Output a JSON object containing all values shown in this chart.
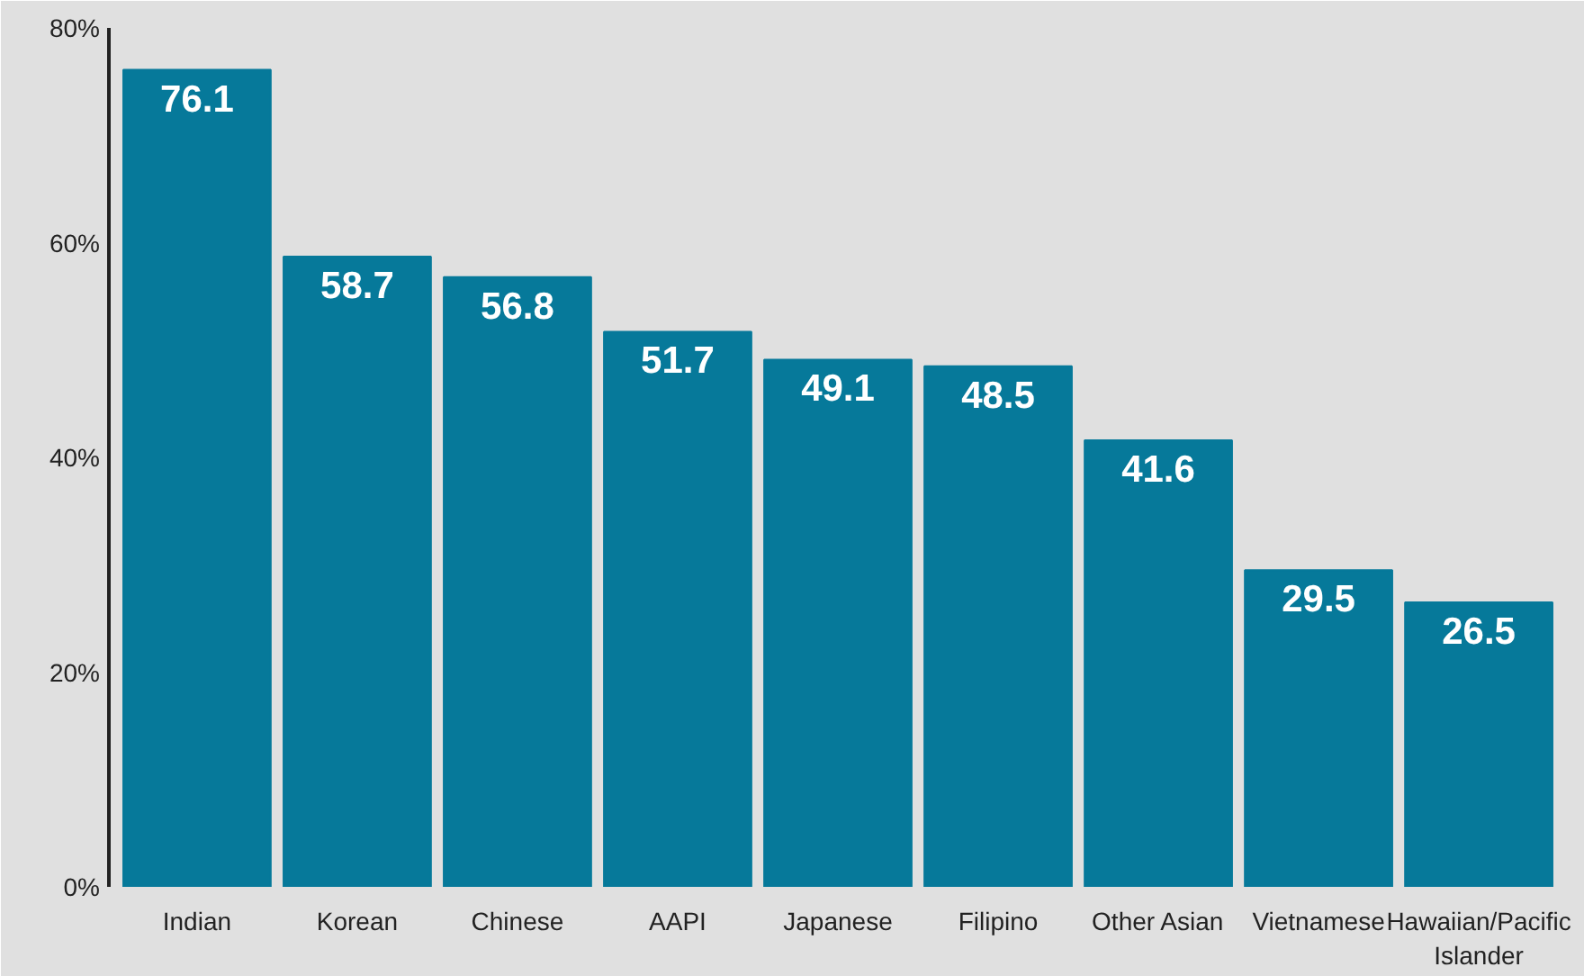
{
  "chart_data": {
    "type": "bar",
    "categories": [
      "Indian",
      "Korean",
      "Chinese",
      "AAPI",
      "Japanese",
      "Filipino",
      "Other Asian",
      "Vietnamese",
      "Hawaiian/Pacific Islander"
    ],
    "values": [
      76.1,
      58.7,
      56.8,
      51.7,
      49.1,
      48.5,
      41.6,
      29.5,
      26.5
    ],
    "color": "#06799a",
    "ylim": [
      0,
      80
    ],
    "yticks": [
      {
        "value": 0,
        "label": "0%"
      },
      {
        "value": 20,
        "label": "20%"
      },
      {
        "value": 40,
        "label": "40%"
      },
      {
        "value": 60,
        "label": "60%"
      },
      {
        "value": 80,
        "label": "80%"
      }
    ],
    "data_labels": true
  }
}
